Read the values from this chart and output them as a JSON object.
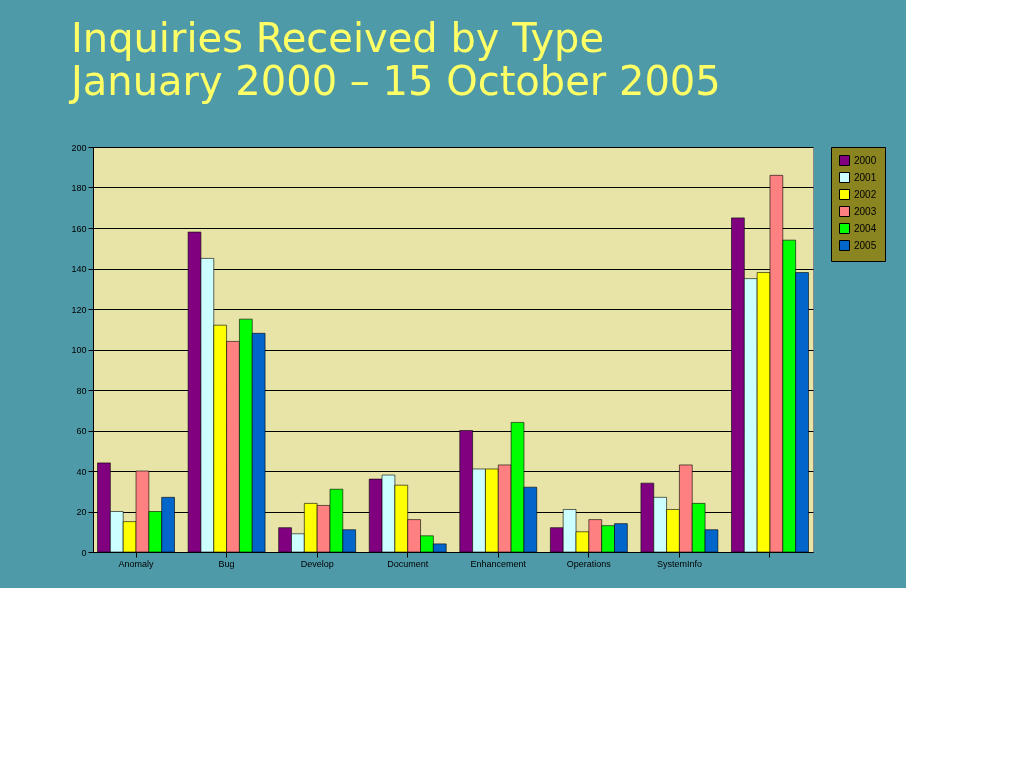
{
  "chart_data": {
    "type": "bar",
    "title": "Inquiries Received by Type",
    "subtitle": "January 2000 – 15 October 2005",
    "categories": [
      "Anomaly",
      "Bug",
      "Develop",
      "Document",
      "Enhancement",
      "Operations",
      "SystemInfo",
      null
    ],
    "series": [
      {
        "name": "2000",
        "color": "#800080",
        "values": [
          44,
          158,
          12,
          36,
          60,
          12,
          34,
          165
        ]
      },
      {
        "name": "2001",
        "color": "#ccffff",
        "values": [
          20,
          145,
          9,
          38,
          41,
          21,
          27,
          135
        ]
      },
      {
        "name": "2002",
        "color": "#ffff00",
        "values": [
          15,
          112,
          24,
          33,
          41,
          10,
          21,
          138
        ]
      },
      {
        "name": "2003",
        "color": "#ff8080",
        "values": [
          40,
          104,
          23,
          16,
          43,
          16,
          43,
          186
        ]
      },
      {
        "name": "2004",
        "color": "#00ff00",
        "values": [
          20,
          115,
          31,
          8,
          64,
          13,
          24,
          154
        ]
      },
      {
        "name": "2005",
        "color": "#0066cc",
        "values": [
          27,
          108,
          11,
          4,
          32,
          14,
          11,
          138
        ]
      }
    ],
    "ylim": [
      0,
      200
    ],
    "yticks": [
      0,
      20,
      40,
      60,
      80,
      100,
      120,
      140,
      160,
      180,
      200
    ],
    "grid": "y",
    "legend": "top right"
  }
}
